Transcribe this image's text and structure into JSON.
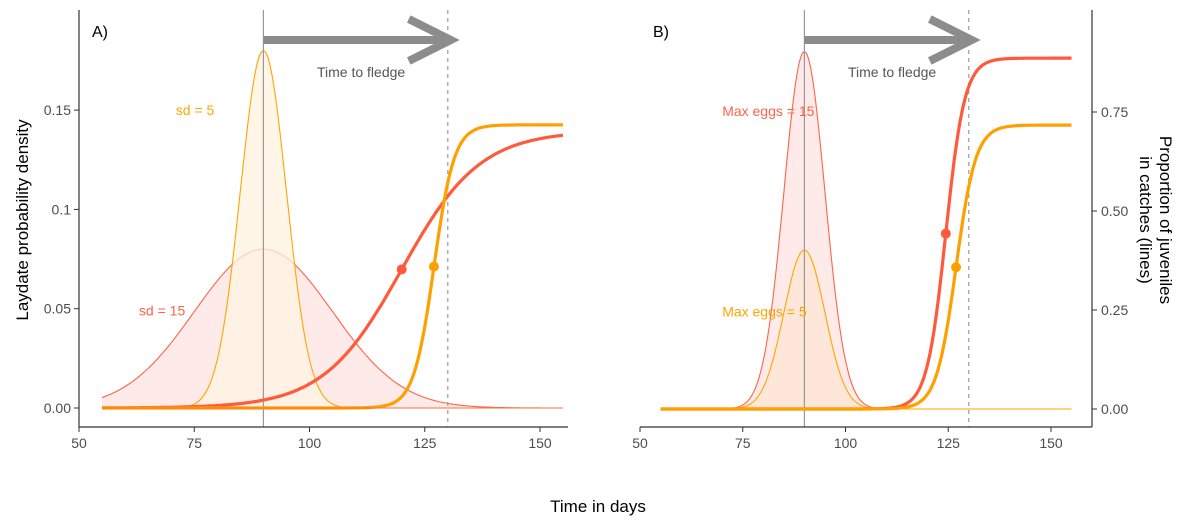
{
  "chart_data": [
    {
      "type": "line",
      "panel_label": "A)",
      "xlabel": "Time in days",
      "ylabel_left": "Laydate probability density",
      "xlim": [
        50,
        160
      ],
      "x_ticks": [
        50,
        75,
        100,
        125,
        150
      ],
      "x_tick_labels": [
        "50",
        "75",
        "100",
        "125",
        "150"
      ],
      "ylim_left": [
        -0.009,
        0.2
      ],
      "y_ticks_left": [
        0,
        0.05,
        0.1,
        0.15
      ],
      "y_tick_labels_left": [
        "0.00",
        "0.05",
        "0.1",
        "0.15"
      ],
      "mean_laydate": 90,
      "fledge_date": 130,
      "arrow_label": "Time to fledge",
      "density_series": [
        {
          "name": "sd = 5",
          "color": "#FFA500",
          "fill": "#FFF3E0",
          "mean": 90,
          "sd": 5,
          "peak": 0.18,
          "x_range": [
            55,
            155
          ]
        },
        {
          "name": "sd = 15",
          "color": "#FF6347",
          "fill": "#FDE4E1",
          "mean": 90,
          "sd": 15,
          "peak": 0.08,
          "x_range": [
            55,
            155
          ]
        }
      ],
      "proportion_series": [
        {
          "name": "sd = 15",
          "color": "#FF5A3C",
          "plateau": 0.7,
          "midpoint": 120,
          "scale": 8.5,
          "x_range": [
            55,
            155
          ],
          "marker": {
            "x": 120,
            "y": 0.35
          }
        },
        {
          "name": "sd = 5",
          "color": "#FFA000",
          "plateau": 0.715,
          "midpoint": 127,
          "scale": 2.2,
          "x_range": [
            55,
            155
          ],
          "marker": {
            "x": 127,
            "y": 0.357
          }
        }
      ],
      "annotations": [
        {
          "text": "sd = 5",
          "color": "#FFA500",
          "x": 71,
          "y": 0.15
        },
        {
          "text": "sd = 15",
          "color": "#FF6347",
          "x": 63,
          "y": 0.049
        }
      ]
    },
    {
      "type": "line",
      "panel_label": "B)",
      "xlabel": "Time in days",
      "ylabel_right": "Proportion of juveniles\nin catches (lines)",
      "ylabel_right_lines": [
        "Proportion of juveniles",
        "in catches (lines)"
      ],
      "xlim": [
        50,
        160
      ],
      "x_ticks": [
        50,
        75,
        100,
        125,
        150
      ],
      "x_tick_labels": [
        "50",
        "75",
        "100",
        "125",
        "150"
      ],
      "ylim_right": [
        -0.045,
        1.0
      ],
      "y_ticks_right": [
        0,
        0.25,
        0.5,
        0.75
      ],
      "y_tick_labels_right": [
        "0.00",
        "0.25",
        "0.50",
        "0.75"
      ],
      "mean_laydate": 90,
      "fledge_date": 130,
      "arrow_label": "Time to fledge",
      "density_series": [
        {
          "name": "Max eggs = 15",
          "color": "#FF6347",
          "fill": "#FDE4E1",
          "mean": 90,
          "sd": 5,
          "peak": 0.18,
          "x_range": [
            55,
            155
          ]
        },
        {
          "name": "Max eggs = 5",
          "color": "#FFA500",
          "fill": "#FDE4D3",
          "mean": 90,
          "sd": 5,
          "peak": 0.08,
          "x_range": [
            55,
            155
          ]
        }
      ],
      "proportion_series": [
        {
          "name": "Max eggs = 15",
          "color": "#FF5A3C",
          "plateau": 0.886,
          "midpoint": 124.4,
          "scale": 2.3,
          "x_range": [
            55,
            155
          ],
          "marker": {
            "x": 124.4,
            "y": 0.443
          }
        },
        {
          "name": "Max eggs = 5",
          "color": "#FFA000",
          "plateau": 0.717,
          "midpoint": 126.9,
          "scale": 2.4,
          "x_range": [
            55,
            155
          ],
          "marker": {
            "x": 126.9,
            "y": 0.358
          }
        }
      ],
      "annotations": [
        {
          "text": "Max eggs = 15",
          "color": "#FF6347",
          "x": 70,
          "y": 0.15
        },
        {
          "text": "Max eggs = 5",
          "color": "#FFA500",
          "x": 70,
          "y": 0.049
        }
      ]
    }
  ],
  "shared": {
    "xlabel": "Time in days",
    "ylabel_left": "Laydate probability density",
    "ylabel_right_lines": [
      "Proportion of juveniles",
      "in catches (lines)"
    ]
  }
}
